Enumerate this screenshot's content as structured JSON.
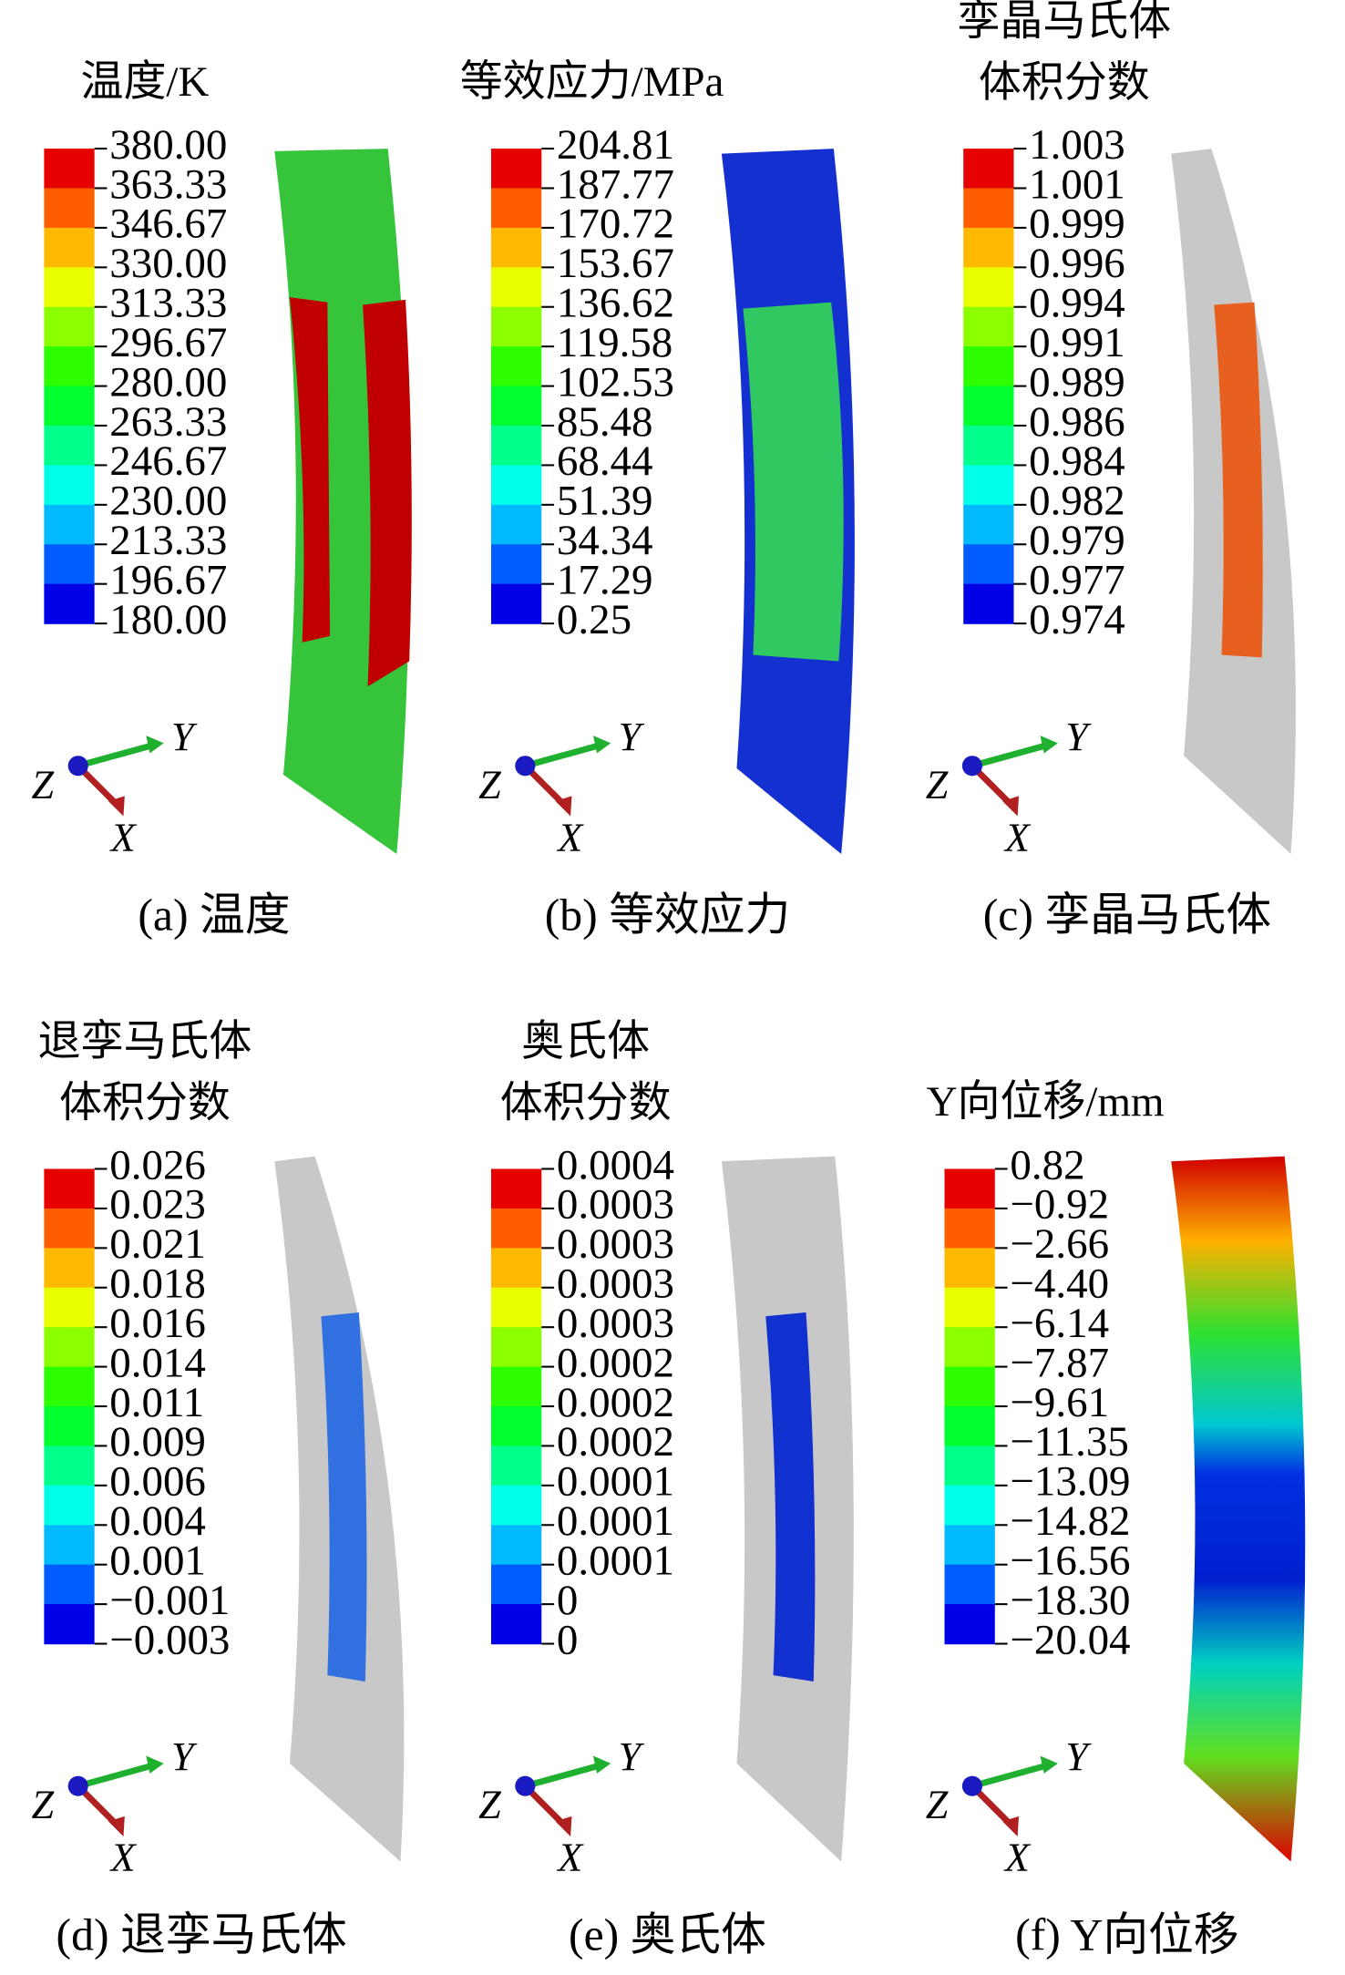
{
  "panels": [
    {
      "title": [
        "温度/K"
      ],
      "legend": [
        "380.00",
        "363.33",
        "346.67",
        "330.00",
        "313.33",
        "296.67",
        "280.00",
        "263.33",
        "246.67",
        "230.00",
        "213.33",
        "196.67",
        "180.00"
      ],
      "axes": {
        "x": "X",
        "y": "Y",
        "z": "Z"
      },
      "caption": "(a) 温度"
    },
    {
      "title": [
        "等效应力/MPa"
      ],
      "legend": [
        "204.81",
        "187.77",
        "170.72",
        "153.67",
        "136.62",
        "119.58",
        "102.53",
        "85.48",
        "68.44",
        "51.39",
        "34.34",
        "17.29",
        "0.25"
      ],
      "axes": {
        "x": "X",
        "y": "Y",
        "z": "Z"
      },
      "caption": "(b) 等效应力"
    },
    {
      "title": [
        "孪晶马氏体",
        "体积分数"
      ],
      "legend": [
        "1.003",
        "1.001",
        "0.999",
        "0.996",
        "0.994",
        "0.991",
        "0.989",
        "0.986",
        "0.984",
        "0.982",
        "0.979",
        "0.977",
        "0.974"
      ],
      "axes": {
        "x": "X",
        "y": "Y",
        "z": "Z"
      },
      "caption": "(c) 孪晶马氏体"
    },
    {
      "title": [
        "退孪马氏体",
        "体积分数"
      ],
      "legend": [
        "0.026",
        "0.023",
        "0.021",
        "0.018",
        "0.016",
        "0.014",
        "0.011",
        "0.009",
        "0.006",
        "0.004",
        "0.001",
        "−0.001",
        "−0.003"
      ],
      "axes": {
        "x": "X",
        "y": "Y",
        "z": "Z"
      },
      "caption": "(d) 退孪马氏体"
    },
    {
      "title": [
        "奥氏体",
        "体积分数"
      ],
      "legend": [
        "0.0004",
        "0.0003",
        "0.0003",
        "0.0003",
        "0.0003",
        "0.0002",
        "0.0002",
        "0.0002",
        "0.0001",
        "0.0001",
        "0.0001",
        "0",
        "0"
      ],
      "axes": {
        "x": "X",
        "y": "Y",
        "z": "Z"
      },
      "caption": "(e) 奥氏体"
    },
    {
      "title": [
        "Y向位移/mm"
      ],
      "legend": [
        "0.82",
        "−0.92",
        "−2.66",
        "−4.40",
        "−6.14",
        "−7.87",
        "−9.61",
        "−11.35",
        "−13.09",
        "−14.82",
        "−16.56",
        "−18.30",
        "−20.04"
      ],
      "axes": {
        "x": "X",
        "y": "Y",
        "z": "Z"
      },
      "caption": "(f) Y向位移"
    }
  ]
}
